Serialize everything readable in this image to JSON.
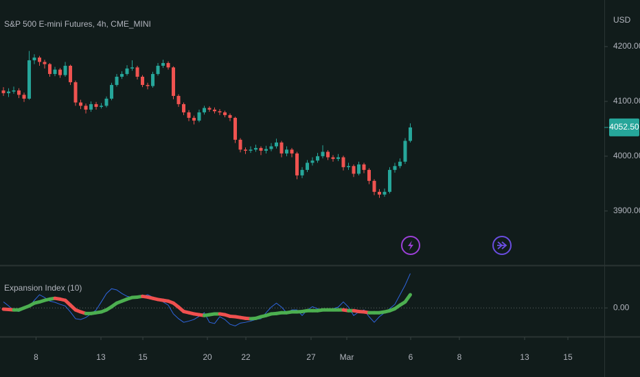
{
  "chart_data": [
    {
      "type": "candlestick",
      "title": "S&P 500 E-mini Futures, 4h, CME_MINI",
      "currency": "USD",
      "up_color": "#26a69a",
      "down_color": "#ef5350",
      "xlim": [
        -0.67,
        116.67
      ],
      "ylim": [
        3806,
        4285
      ],
      "yticks": [
        {
          "value": 3900,
          "label": "3900.00"
        },
        {
          "value": 4000,
          "label": "4000.00"
        },
        {
          "value": 4100,
          "label": "4100.00"
        },
        {
          "value": 4200,
          "label": "4200.00"
        }
      ],
      "last_value_label": "4052.50",
      "open": [
        4120,
        4115,
        4118,
        4120,
        4112,
        4105,
        4175,
        4180,
        4172,
        4168,
        4150,
        4158,
        4148,
        4165,
        4135,
        4098,
        4092,
        4085,
        4095,
        4090,
        4092,
        4105,
        4130,
        4145,
        4150,
        4160,
        4162,
        4145,
        4130,
        4128,
        4150,
        4165,
        4170,
        4162,
        4110,
        4095,
        4080,
        4070,
        4065,
        4080,
        4088,
        4085,
        4082,
        4080,
        4075,
        4070,
        4030,
        4012,
        4010,
        4012,
        4015,
        4010,
        4013,
        4018,
        4025,
        4005,
        4012,
        4005,
        3965,
        3975,
        3988,
        3992,
        4000,
        4008,
        3998,
        3995,
        3998,
        3980,
        3982,
        3968,
        3985,
        3975,
        3955,
        3935,
        3930,
        3935,
        3975,
        3982,
        3990,
        4028
      ],
      "high": [
        4126,
        4124,
        4127,
        4124,
        4116,
        4192,
        4186,
        4183,
        4176,
        4170,
        4163,
        4161,
        4172,
        4167,
        4138,
        4103,
        4096,
        4100,
        4099,
        4097,
        4109,
        4134,
        4150,
        4155,
        4166,
        4175,
        4165,
        4148,
        4134,
        4154,
        4170,
        4176,
        4173,
        4164,
        4113,
        4098,
        4084,
        4074,
        4085,
        4092,
        4091,
        4089,
        4086,
        4083,
        4078,
        4072,
        4033,
        4016,
        4018,
        4021,
        4018,
        4019,
        4024,
        4032,
        4028,
        4018,
        4015,
        4008,
        3980,
        3993,
        3998,
        4006,
        4020,
        4011,
        4002,
        4004,
        4001,
        3988,
        3985,
        3990,
        3988,
        3978,
        3958,
        3940,
        3941,
        3980,
        3988,
        3996,
        4033,
        4060
      ],
      "low": [
        4110,
        4108,
        4114,
        4106,
        4099,
        4103,
        4168,
        4165,
        4160,
        4145,
        4146,
        4143,
        4145,
        4130,
        4092,
        4086,
        4078,
        4081,
        4085,
        4087,
        4089,
        4102,
        4127,
        4141,
        4147,
        4156,
        4140,
        4126,
        4122,
        4125,
        4147,
        4161,
        4158,
        4104,
        4090,
        4075,
        4064,
        4058,
        4062,
        4076,
        4081,
        4078,
        4075,
        4071,
        4064,
        4024,
        4007,
        4004,
        4006,
        4008,
        4002,
        4005,
        4009,
        4014,
        3998,
        4000,
        3998,
        3958,
        3960,
        3971,
        3983,
        3988,
        3996,
        3993,
        3990,
        3991,
        3974,
        3975,
        3962,
        3965,
        3969,
        3949,
        3929,
        3924,
        3926,
        3932,
        3970,
        3978,
        3986,
        4025
      ],
      "close": [
        4115,
        4118,
        4120,
        4112,
        4105,
        4175,
        4180,
        4172,
        4168,
        4150,
        4158,
        4148,
        4165,
        4135,
        4098,
        4092,
        4085,
        4095,
        4090,
        4092,
        4105,
        4130,
        4145,
        4150,
        4160,
        4162,
        4145,
        4130,
        4128,
        4150,
        4165,
        4170,
        4162,
        4110,
        4095,
        4080,
        4070,
        4065,
        4080,
        4088,
        4085,
        4082,
        4080,
        4075,
        4070,
        4030,
        4012,
        4010,
        4012,
        4015,
        4010,
        4013,
        4018,
        4025,
        4005,
        4012,
        4005,
        3965,
        3975,
        3988,
        3992,
        4000,
        4008,
        3998,
        3995,
        3998,
        3980,
        3982,
        3968,
        3985,
        3975,
        3955,
        3935,
        3930,
        3935,
        3975,
        3982,
        3990,
        4028,
        4052.5
      ]
    },
    {
      "type": "line",
      "title": "Expansion Index (10)",
      "xlim": [
        -0.67,
        116.67
      ],
      "ylim": [
        -0.7,
        1.05
      ],
      "grid": true,
      "yticks": [
        {
          "value": 0,
          "label": "0.00"
        }
      ],
      "xticks": [
        {
          "value": 6.33,
          "label": "8"
        },
        {
          "value": 18.93,
          "label": "13"
        },
        {
          "value": 27.07,
          "label": "15"
        },
        {
          "value": 39.6,
          "label": "20"
        },
        {
          "value": 47.07,
          "label": "22"
        },
        {
          "value": 59.73,
          "label": "27"
        },
        {
          "value": 66.67,
          "label": "Mar"
        },
        {
          "value": 79.07,
          "label": "6"
        },
        {
          "value": 88.53,
          "label": "8"
        },
        {
          "value": 101.2,
          "label": "13"
        },
        {
          "value": 109.6,
          "label": "15"
        }
      ],
      "series": [
        {
          "color": "#2f66e0",
          "width": 1,
          "values": [
            0.15,
            0.05,
            -0.07,
            -0.09,
            -0.03,
            0.03,
            0.19,
            0.33,
            0.26,
            0.17,
            0.14,
            0.09,
            0.05,
            -0.1,
            -0.27,
            -0.29,
            -0.24,
            -0.15,
            -0.05,
            0.15,
            0.36,
            0.48,
            0.45,
            0.36,
            0.29,
            0.26,
            0.24,
            0.29,
            0.33,
            0.27,
            0.21,
            0.15,
            0.07,
            -0.15,
            -0.27,
            -0.36,
            -0.33,
            -0.29,
            -0.21,
            -0.12,
            -0.36,
            -0.39,
            -0.22,
            -0.29,
            -0.41,
            -0.45,
            -0.38,
            -0.36,
            -0.33,
            -0.29,
            -0.27,
            -0.12,
            0.02,
            0.12,
            0.02,
            -0.12,
            -0.05,
            -0.05,
            -0.19,
            -0.05,
            0.03,
            -0.02,
            -0.05,
            -0.03,
            -0.02,
            0.02,
            0.15,
            0.02,
            -0.19,
            -0.1,
            -0.05,
            -0.22,
            -0.36,
            -0.22,
            -0.12,
            -0.02,
            0.09,
            0.33,
            0.57,
            0.86
          ]
        },
        {
          "up_color": "#4caf50",
          "down_color": "#f0504f",
          "width": 5,
          "values": [
            -0.03,
            -0.04,
            -0.05,
            -0.05,
            0,
            0.05,
            0.12,
            0.15,
            0.19,
            0.22,
            0.24,
            0.22,
            0.19,
            0.07,
            -0.05,
            -0.1,
            -0.14,
            -0.14,
            -0.12,
            -0.1,
            -0.05,
            0.03,
            0.12,
            0.17,
            0.22,
            0.26,
            0.27,
            0.29,
            0.27,
            0.24,
            0.21,
            0.19,
            0.17,
            0.12,
            0.02,
            -0.09,
            -0.12,
            -0.15,
            -0.17,
            -0.19,
            -0.17,
            -0.15,
            -0.15,
            -0.17,
            -0.21,
            -0.22,
            -0.24,
            -0.26,
            -0.27,
            -0.26,
            -0.22,
            -0.19,
            -0.15,
            -0.14,
            -0.12,
            -0.12,
            -0.1,
            -0.1,
            -0.09,
            -0.07,
            -0.07,
            -0.07,
            -0.05,
            -0.05,
            -0.05,
            -0.05,
            -0.05,
            -0.07,
            -0.07,
            -0.09,
            -0.1,
            -0.12,
            -0.12,
            -0.12,
            -0.1,
            -0.07,
            -0.02,
            0.07,
            0.15,
            0.33
          ]
        }
      ]
    }
  ]
}
